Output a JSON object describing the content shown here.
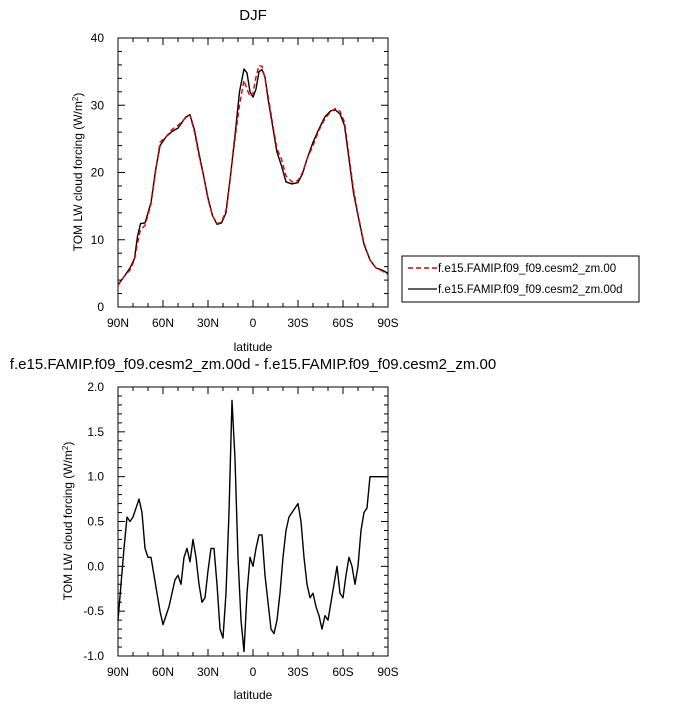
{
  "chart_data": [
    {
      "type": "line",
      "title": "DJF",
      "xlabel": "latitude",
      "ylabel": "TOM LW cloud forcing (W/m",
      "ylabel_sup": "2",
      "ylabel_close": ")",
      "xlim": [
        90,
        -90
      ],
      "ylim": [
        0,
        40
      ],
      "x_ticks": [
        {
          "value": 90,
          "label": "90N"
        },
        {
          "value": 60,
          "label": "60N"
        },
        {
          "value": 30,
          "label": "30N"
        },
        {
          "value": 0,
          "label": "0"
        },
        {
          "value": -30,
          "label": "30S"
        },
        {
          "value": -60,
          "label": "60S"
        },
        {
          "value": -90,
          "label": "90S"
        }
      ],
      "y_ticks": [
        {
          "value": 0,
          "label": "0"
        },
        {
          "value": 10,
          "label": "10"
        },
        {
          "value": 20,
          "label": "20"
        },
        {
          "value": 30,
          "label": "30"
        },
        {
          "value": 40,
          "label": "40"
        }
      ],
      "legend": {
        "placement": "right"
      },
      "series": [
        {
          "name": "f.e15.FAMIP.f09_f09.cesm2_zm.00",
          "color": "#dd0000",
          "dash": "dashed",
          "x": [
            90,
            86,
            82,
            79,
            77,
            75,
            72,
            68,
            65,
            62,
            58,
            54,
            50,
            45,
            42,
            39,
            36,
            33,
            30,
            27,
            24,
            21,
            18,
            15,
            12,
            9,
            6,
            4,
            2,
            0,
            -2,
            -4,
            -6,
            -8,
            -10,
            -13,
            -16,
            -19,
            -22,
            -26,
            -30,
            -33,
            -36,
            -40,
            -44,
            -48,
            -52,
            -55,
            -58,
            -61,
            -64,
            -67,
            -70,
            -74,
            -78,
            -82,
            -86,
            -90
          ],
          "values": [
            3.2,
            4.5,
            5.5,
            7.0,
            9.5,
            11.5,
            12.1,
            15.3,
            20.0,
            24.5,
            25.3,
            26.4,
            27.0,
            28.1,
            28.5,
            26.0,
            22.5,
            19.5,
            16.0,
            13.6,
            12.4,
            12.6,
            14.4,
            19.5,
            25.0,
            30.0,
            33.7,
            32.4,
            31.3,
            31.8,
            34.2,
            35.9,
            35.8,
            34.0,
            31.5,
            27.4,
            23.5,
            22.0,
            19.5,
            18.6,
            18.8,
            20.0,
            22.0,
            24.0,
            26.3,
            28.0,
            29.1,
            29.5,
            29.1,
            27.5,
            22.5,
            17.5,
            13.8,
            9.5,
            7.0,
            5.8,
            5.4,
            4.8
          ]
        },
        {
          "name": "f.e15.FAMIP.f09_f09.cesm2_zm.00d",
          "color": "#000000",
          "dash": "solid",
          "x": [
            90,
            86,
            82,
            79,
            77,
            75,
            72,
            68,
            65,
            62,
            58,
            54,
            50,
            45,
            42,
            39,
            36,
            33,
            30,
            27,
            24,
            21,
            18,
            15,
            12,
            9,
            6,
            4,
            2,
            0,
            -2,
            -4,
            -6,
            -8,
            -10,
            -13,
            -16,
            -19,
            -22,
            -26,
            -30,
            -33,
            -36,
            -40,
            -44,
            -48,
            -52,
            -55,
            -58,
            -61,
            -64,
            -67,
            -70,
            -74,
            -78,
            -82,
            -86,
            -90
          ],
          "values": [
            3.3,
            4.5,
            5.8,
            7.2,
            10.5,
            12.4,
            12.5,
            15.5,
            20.3,
            24.0,
            25.3,
            26.1,
            26.6,
            28.2,
            28.6,
            26.3,
            22.8,
            19.6,
            16.2,
            13.6,
            12.3,
            12.5,
            14.0,
            19.5,
            25.5,
            32.0,
            35.4,
            34.8,
            32.0,
            31.2,
            32.4,
            35.0,
            35.3,
            34.2,
            31.0,
            27.0,
            23.0,
            21.0,
            18.6,
            18.3,
            18.5,
            19.8,
            22.0,
            24.5,
            26.5,
            28.3,
            29.2,
            29.3,
            28.7,
            27.0,
            22.0,
            17.0,
            13.6,
            9.3,
            7.0,
            5.8,
            5.5,
            5.0
          ]
        }
      ]
    },
    {
      "type": "line",
      "title": "f.e15.FAMIP.f09_f09.cesm2_zm.00d - f.e15.FAMIP.f09_f09.cesm2_zm.00",
      "xlabel": "latitude",
      "ylabel": "TOM LW cloud forcing (W/m",
      "ylabel_sup": "2",
      "ylabel_close": ")",
      "xlim": [
        90,
        -90
      ],
      "ylim": [
        -1.0,
        2.0
      ],
      "x_ticks": [
        {
          "value": 90,
          "label": "90N"
        },
        {
          "value": 60,
          "label": "60N"
        },
        {
          "value": 30,
          "label": "30N"
        },
        {
          "value": 0,
          "label": "0"
        },
        {
          "value": -30,
          "label": "30S"
        },
        {
          "value": -60,
          "label": "60S"
        },
        {
          "value": -90,
          "label": "90S"
        }
      ],
      "y_ticks": [
        {
          "value": -1.0,
          "label": "-1.0"
        },
        {
          "value": -0.5,
          "label": "-0.5"
        },
        {
          "value": 0.0,
          "label": "0.0"
        },
        {
          "value": 0.5,
          "label": "0.5"
        },
        {
          "value": 1.0,
          "label": "1.0"
        },
        {
          "value": 1.5,
          "label": "1.5"
        },
        {
          "value": 2.0,
          "label": "2.0"
        }
      ],
      "series": [
        {
          "name": "f.e15.FAMIP.f09_f09.cesm2_zm.00d - f.e15.FAMIP.f09_f09.cesm2_zm.00",
          "color": "#000000",
          "dash": "solid",
          "x": [
            90,
            88,
            86,
            84,
            82,
            80,
            78,
            76,
            74,
            72,
            70,
            68,
            66,
            64,
            62,
            60,
            58,
            56,
            54,
            52,
            50,
            48,
            46,
            44,
            42,
            40,
            38,
            36,
            34,
            32,
            30,
            28,
            26,
            24,
            22,
            20,
            18,
            16,
            14,
            12,
            10,
            8,
            6,
            4,
            2,
            0,
            -2,
            -4,
            -6,
            -8,
            -10,
            -12,
            -14,
            -16,
            -18,
            -20,
            -22,
            -24,
            -26,
            -28,
            -30,
            -32,
            -34,
            -36,
            -38,
            -40,
            -42,
            -44,
            -46,
            -48,
            -50,
            -52,
            -54,
            -56,
            -58,
            -60,
            -62,
            -64,
            -66,
            -68,
            -70,
            -72,
            -74,
            -76,
            -78,
            -80,
            -82,
            -84,
            -86,
            -88,
            -90
          ],
          "values": [
            -0.6,
            -0.2,
            0.2,
            0.55,
            0.5,
            0.55,
            0.65,
            0.75,
            0.6,
            0.2,
            0.1,
            0.1,
            -0.1,
            -0.3,
            -0.5,
            -0.65,
            -0.55,
            -0.45,
            -0.3,
            -0.15,
            -0.1,
            -0.2,
            0.1,
            0.2,
            0.05,
            0.3,
            0.1,
            -0.2,
            -0.4,
            -0.35,
            -0.05,
            0.2,
            0.2,
            -0.2,
            -0.7,
            -0.8,
            -0.3,
            0.6,
            1.85,
            1.2,
            0.1,
            -0.6,
            -0.95,
            -0.3,
            0.1,
            0.0,
            0.2,
            0.35,
            0.35,
            -0.1,
            -0.4,
            -0.7,
            -0.75,
            -0.6,
            -0.3,
            0.1,
            0.4,
            0.55,
            0.6,
            0.65,
            0.7,
            0.5,
            0.1,
            -0.2,
            -0.35,
            -0.3,
            -0.45,
            -0.55,
            -0.7,
            -0.55,
            -0.6,
            -0.4,
            -0.2,
            0.0,
            -0.3,
            -0.35,
            -0.1,
            0.1,
            0.0,
            -0.2,
            0.0,
            0.4,
            0.6,
            0.65,
            1.0,
            1.0,
            1.0,
            1.0,
            1.0,
            1.0,
            1.0
          ]
        }
      ]
    }
  ]
}
